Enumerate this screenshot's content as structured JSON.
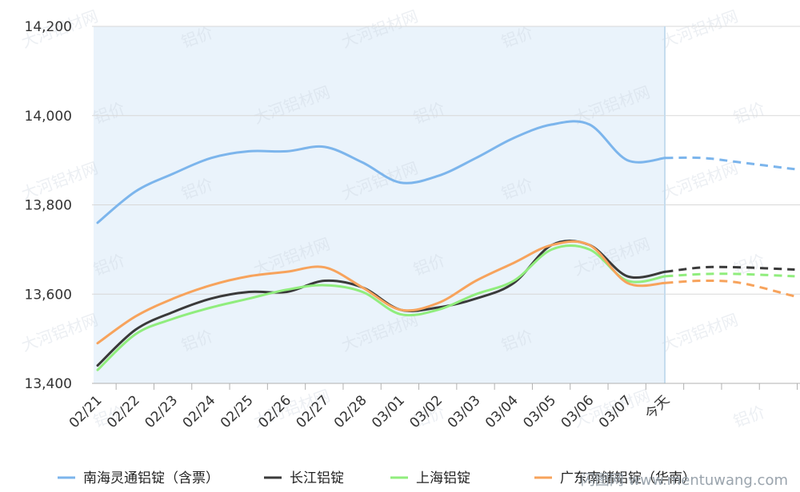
{
  "chart_data": {
    "type": "line",
    "categories": [
      "02/21",
      "02/22",
      "02/23",
      "02/24",
      "02/25",
      "02/26",
      "02/27",
      "02/28",
      "03/01",
      "03/02",
      "03/03",
      "03/04",
      "03/05",
      "03/06",
      "03/07",
      "今天"
    ],
    "forecast_points": 3,
    "ylim": [
      13400,
      14200
    ],
    "yticks": [
      13400,
      13600,
      13800,
      14000,
      14200
    ],
    "ytick_labels": [
      "13,400",
      "13,600",
      "13,800",
      "14,000",
      "14,200"
    ],
    "grid": true,
    "history_shaded": true,
    "legend_position": "bottom",
    "series": [
      {
        "name": "南海灵通铝锭（含票）",
        "color": "#7cb5ec",
        "values": [
          13760,
          13830,
          13870,
          13905,
          13920,
          13920,
          13930,
          13895,
          13850,
          13865,
          13905,
          13950,
          13980,
          13980,
          13900,
          13905
        ],
        "forecast": [
          13905,
          13895,
          13880
        ]
      },
      {
        "name": "长江铝锭",
        "color": "#3a3a3a",
        "values": [
          13440,
          13520,
          13560,
          13590,
          13605,
          13605,
          13630,
          13615,
          13565,
          13570,
          13590,
          13625,
          13710,
          13710,
          13640,
          13650
        ],
        "forecast": [
          13660,
          13660,
          13655
        ]
      },
      {
        "name": "上海铝锭",
        "color": "#90ed7d",
        "values": [
          13430,
          13510,
          13545,
          13570,
          13590,
          13610,
          13620,
          13605,
          13555,
          13565,
          13600,
          13630,
          13700,
          13700,
          13630,
          13640
        ],
        "forecast": [
          13645,
          13645,
          13640
        ]
      },
      {
        "name": "广东南储铝锭（华南）",
        "color": "#f7a35c",
        "values": [
          13490,
          13550,
          13590,
          13620,
          13640,
          13650,
          13660,
          13615,
          13565,
          13580,
          13630,
          13670,
          13710,
          13710,
          13625,
          13625
        ],
        "forecast": [
          13630,
          13625,
          13595
        ]
      }
    ]
  },
  "watermark": {
    "brand": "大河铝材网",
    "price": "铝价"
  },
  "footer": {
    "site": "闪图网 www.mentuwang.com"
  }
}
